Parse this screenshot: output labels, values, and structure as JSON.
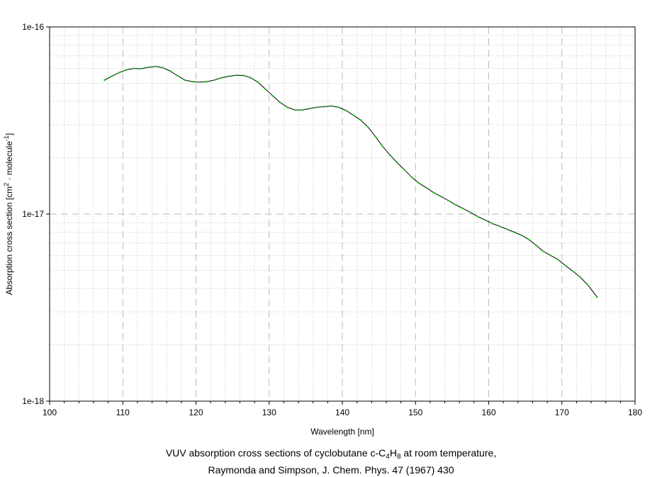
{
  "chart_data": {
    "type": "line",
    "xlabel": "Wavelength [nm]",
    "ylabel": {
      "prefix": "Absorption cross section [cm",
      "exp1": "2",
      "middle": " · molecule",
      "exp2": "-1",
      "suffix": "]"
    },
    "xlim": [
      100,
      180
    ],
    "ylim": [
      1e-18,
      1e-16
    ],
    "yscale": "log",
    "x_ticks": [
      100,
      110,
      120,
      130,
      140,
      150,
      160,
      170,
      180
    ],
    "y_ticks": [
      {
        "value": 1e-18,
        "label": "1e-18"
      },
      {
        "value": 1e-17,
        "label": "1e-17"
      },
      {
        "value": 1e-16,
        "label": "1e-16"
      }
    ],
    "grid": true,
    "series_colors": {
      "line": "#000000",
      "markers": "#00dd00"
    },
    "series": [
      {
        "x": [
          107.5,
          108.5,
          109.5,
          110.5,
          111.5,
          112.5,
          113.5,
          114.5,
          115.5,
          116.5,
          117.5,
          118.5,
          119.5,
          120.5,
          121.5,
          122.5,
          123.5,
          124.5,
          125.5,
          126.5,
          127.5,
          128.5,
          129.5,
          130.5,
          131.5,
          132.5,
          133.5,
          134.5,
          135.5,
          136.5,
          137.5,
          138.5,
          139.5,
          140.5,
          141.5,
          142.5,
          143.5,
          144.5,
          145.5,
          146.5,
          147.5,
          148.5,
          149.5,
          150.5,
          151.5,
          152.5,
          153.5,
          154.5,
          155.5,
          156.5,
          157.5,
          158.5,
          159.5,
          160.5,
          161.5,
          162.5,
          163.5,
          164.5,
          165.5,
          166.5,
          167.5,
          168.5,
          169.5,
          170.5,
          171.5,
          172.5,
          173.5,
          174.8
        ],
        "y": [
          5.2e-17,
          5.45e-17,
          5.7e-17,
          5.9e-17,
          6e-17,
          5.98e-17,
          6.08e-17,
          6.15e-17,
          6.05e-17,
          5.8e-17,
          5.48e-17,
          5.2e-17,
          5.1e-17,
          5.07e-17,
          5.1e-17,
          5.2e-17,
          5.35e-17,
          5.45e-17,
          5.52e-17,
          5.5e-17,
          5.35e-17,
          5.05e-17,
          4.65e-17,
          4.28e-17,
          3.95e-17,
          3.72e-17,
          3.6e-17,
          3.6e-17,
          3.66e-17,
          3.72e-17,
          3.75e-17,
          3.78e-17,
          3.72e-17,
          3.58e-17,
          3.38e-17,
          3.18e-17,
          2.92e-17,
          2.6e-17,
          2.3e-17,
          2.07e-17,
          1.88e-17,
          1.72e-17,
          1.57e-17,
          1.46e-17,
          1.38e-17,
          1.3e-17,
          1.24e-17,
          1.18e-17,
          1.12e-17,
          1.07e-17,
          1.02e-17,
          9.7e-18,
          9.3e-18,
          8.9e-18,
          8.6e-18,
          8.3e-18,
          8e-18,
          7.7e-18,
          7.3e-18,
          6.8e-18,
          6.3e-18,
          6e-18,
          5.7e-18,
          5.3e-18,
          4.95e-18,
          4.6e-18,
          4.2e-18,
          3.6e-18
        ]
      }
    ]
  },
  "caption": {
    "line1_prefix": "VUV absorption cross sections of cyclobutane c-C",
    "sub1": "4",
    "mid": "H",
    "sub2": "8",
    "line1_suffix": " at room temperature,",
    "line2": "Raymonda and Simpson, J. Chem. Phys. 47 (1967) 430"
  }
}
